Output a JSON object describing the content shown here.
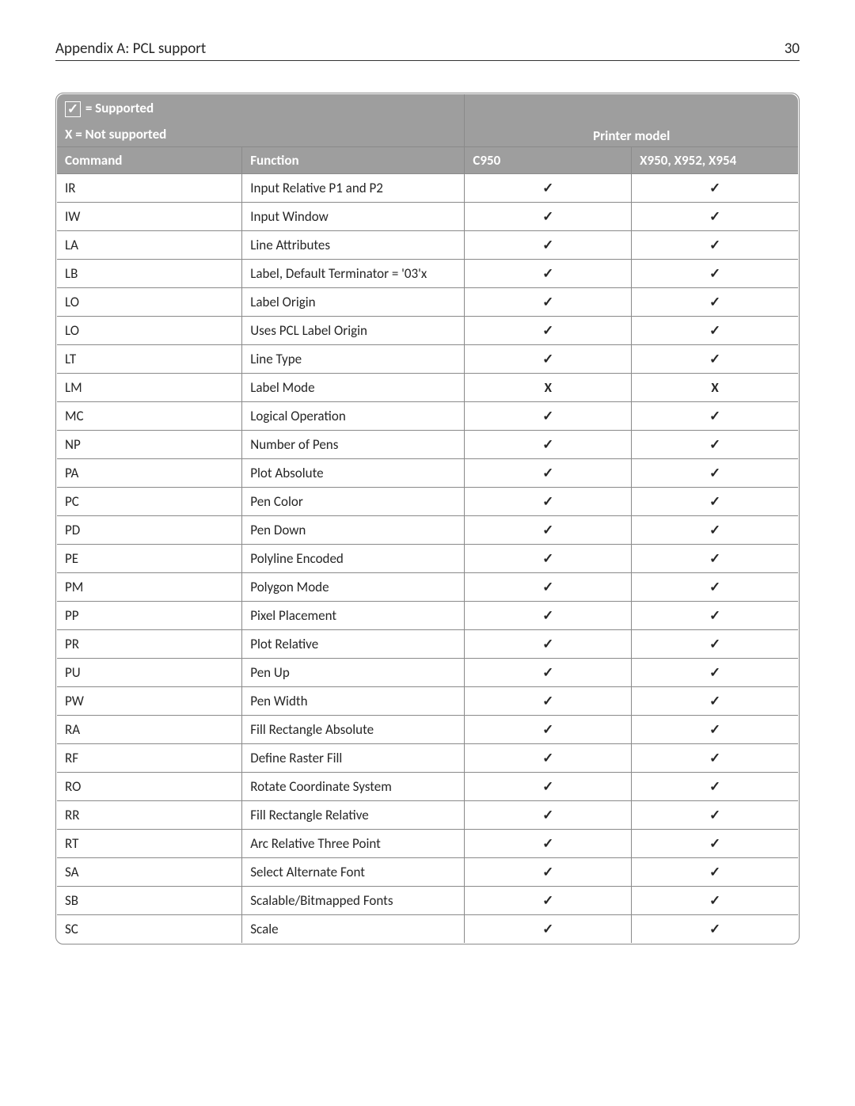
{
  "page": {
    "title": "Appendix A: PCL support",
    "number": "30"
  },
  "legend": {
    "supported_symbol": "✓",
    "supported_text": " = Supported",
    "not_supported_text": "X = Not supported",
    "printer_model_header": "Printer model"
  },
  "columns": {
    "command": "Command",
    "function": "Function",
    "c950": "C950",
    "x95x": "X950, X952, X954"
  },
  "marks": {
    "check": "✓",
    "x": "X"
  },
  "rows": [
    {
      "cmd": "IR",
      "func": "Input Relative P1 and P2",
      "c950": "check",
      "x95x": "check"
    },
    {
      "cmd": "IW",
      "func": "Input Window",
      "c950": "check",
      "x95x": "check"
    },
    {
      "cmd": "LA",
      "func": "Line Attributes",
      "c950": "check",
      "x95x": "check"
    },
    {
      "cmd": "LB",
      "func": "Label, Default Terminator = '03'x",
      "c950": "check",
      "x95x": "check"
    },
    {
      "cmd": "LO",
      "func": "Label Origin",
      "c950": "check",
      "x95x": "check"
    },
    {
      "cmd": "LO",
      "func": "Uses PCL Label Origin",
      "c950": "check",
      "x95x": "check"
    },
    {
      "cmd": "LT",
      "func": "Line Type",
      "c950": "check",
      "x95x": "check"
    },
    {
      "cmd": "LM",
      "func": "Label Mode",
      "c950": "x",
      "x95x": "x"
    },
    {
      "cmd": "MC",
      "func": "Logical Operation",
      "c950": "check",
      "x95x": "check"
    },
    {
      "cmd": "NP",
      "func": "Number of Pens",
      "c950": "check",
      "x95x": "check"
    },
    {
      "cmd": "PA",
      "func": "Plot Absolute",
      "c950": "check",
      "x95x": "check"
    },
    {
      "cmd": "PC",
      "func": "Pen Color",
      "c950": "check",
      "x95x": "check"
    },
    {
      "cmd": "PD",
      "func": "Pen Down",
      "c950": "check",
      "x95x": "check"
    },
    {
      "cmd": "PE",
      "func": "Polyline Encoded",
      "c950": "check",
      "x95x": "check"
    },
    {
      "cmd": "PM",
      "func": "Polygon Mode",
      "c950": "check",
      "x95x": "check"
    },
    {
      "cmd": "PP",
      "func": "Pixel Placement",
      "c950": "check",
      "x95x": "check"
    },
    {
      "cmd": "PR",
      "func": "Plot Relative",
      "c950": "check",
      "x95x": "check"
    },
    {
      "cmd": "PU",
      "func": "Pen Up",
      "c950": "check",
      "x95x": "check"
    },
    {
      "cmd": "PW",
      "func": "Pen Width",
      "c950": "check",
      "x95x": "check"
    },
    {
      "cmd": "RA",
      "func": "Fill Rectangle Absolute",
      "c950": "check",
      "x95x": "check"
    },
    {
      "cmd": "RF",
      "func": "Define Raster Fill",
      "c950": "check",
      "x95x": "check"
    },
    {
      "cmd": "RO",
      "func": "Rotate Coordinate System",
      "c950": "check",
      "x95x": "check"
    },
    {
      "cmd": "RR",
      "func": "Fill Rectangle Relative",
      "c950": "check",
      "x95x": "check"
    },
    {
      "cmd": "RT",
      "func": "Arc Relative Three Point",
      "c950": "check",
      "x95x": "check"
    },
    {
      "cmd": "SA",
      "func": "Select Alternate Font",
      "c950": "check",
      "x95x": "check"
    },
    {
      "cmd": "SB",
      "func": "Scalable/Bitmapped Fonts",
      "c950": "check",
      "x95x": "check"
    },
    {
      "cmd": "SC",
      "func": "Scale",
      "c950": "check",
      "x95x": "check"
    }
  ],
  "style": {
    "header_bg": "#9e9e9e",
    "header_fg": "#ffffff",
    "border_color": "#8a8a8a",
    "text_color": "#262626",
    "column_widths_pct": [
      25,
      30,
      22.5,
      22.5
    ]
  }
}
